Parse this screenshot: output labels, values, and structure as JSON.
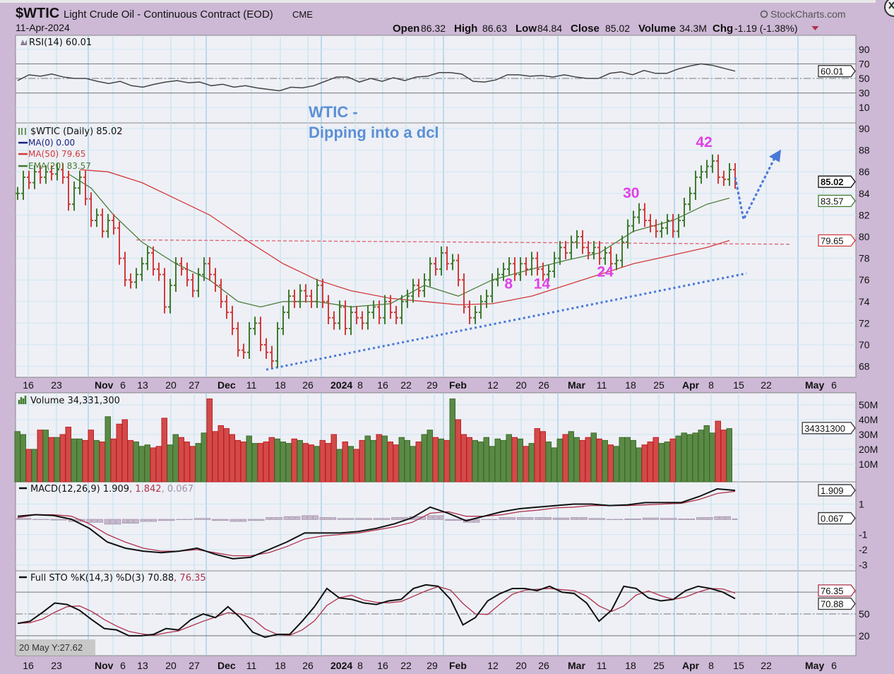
{
  "header": {
    "symbol": "$WTIC",
    "description": "Light Crude Oil - Continuous Contract (EOD)",
    "exchange": "CME",
    "date": "11-Apr-2024",
    "brand": "StockCharts.com",
    "stats": [
      {
        "label": "Open",
        "value": "86.32"
      },
      {
        "label": "High",
        "value": "86.63"
      },
      {
        "label": "Low",
        "value": "84.84"
      },
      {
        "label": "Close",
        "value": "85.02"
      },
      {
        "label": "Volume",
        "value": "34.3M"
      },
      {
        "label": "Chg",
        "value": "-1.19 (-1.38%)"
      }
    ],
    "colors": {
      "background": "#cdb8d5",
      "panel": "#eef0f6",
      "up": "#3f7a2e",
      "down": "#d23a3a",
      "annotation": "#5b8fd6",
      "cycle": "#e040e8"
    }
  },
  "chart_data": {
    "type": "line",
    "title": "$WTIC Light Crude Oil - Continuous Contract (EOD) CME",
    "date_axis": [
      {
        "text": "16",
        "bold": false
      },
      {
        "text": "23",
        "bold": false
      },
      {
        "text": "Nov",
        "bold": true
      },
      {
        "text": "6",
        "bold": false
      },
      {
        "text": "13",
        "bold": false
      },
      {
        "text": "20",
        "bold": false
      },
      {
        "text": "27",
        "bold": false
      },
      {
        "text": "Dec",
        "bold": true
      },
      {
        "text": "11",
        "bold": false
      },
      {
        "text": "18",
        "bold": false
      },
      {
        "text": "26",
        "bold": false
      },
      {
        "text": "2024",
        "bold": true
      },
      {
        "text": "8",
        "bold": false
      },
      {
        "text": "16",
        "bold": false
      },
      {
        "text": "22",
        "bold": false
      },
      {
        "text": "29",
        "bold": false
      },
      {
        "text": "Feb",
        "bold": true
      },
      {
        "text": "12",
        "bold": false
      },
      {
        "text": "20",
        "bold": false
      },
      {
        "text": "26",
        "bold": false
      },
      {
        "text": "Mar",
        "bold": true
      },
      {
        "text": "11",
        "bold": false
      },
      {
        "text": "18",
        "bold": false
      },
      {
        "text": "25",
        "bold": false
      },
      {
        "text": "Apr",
        "bold": true
      },
      {
        "text": "8",
        "bold": false
      },
      {
        "text": "15",
        "bold": false
      },
      {
        "text": "22",
        "bold": false
      },
      {
        "text": "May",
        "bold": true
      },
      {
        "text": "6",
        "bold": false
      }
    ],
    "rsi": {
      "legend": "RSI(14) 60.01",
      "tag": "60.01",
      "ticks": [
        90,
        70,
        50,
        30,
        10
      ],
      "ylim": [
        0,
        100
      ],
      "values": [
        47,
        55,
        53,
        56,
        52,
        50,
        50,
        46,
        43,
        46,
        40,
        38,
        42,
        45,
        47,
        44,
        45,
        40,
        42,
        38,
        40,
        37,
        35,
        33,
        38,
        37,
        40,
        46,
        52,
        52,
        45,
        50,
        46,
        51,
        47,
        52,
        53,
        58,
        58,
        56,
        46,
        45,
        48,
        55,
        55,
        53,
        54,
        52,
        55,
        52,
        50,
        50,
        57,
        59,
        55,
        61,
        57,
        57,
        63,
        67,
        70,
        68,
        64,
        60
      ]
    },
    "price": {
      "legend": "$WTIC (Daily) 85.02",
      "ma0_legend": "MA(0) 0.00",
      "ma50_legend": "MA(50) 79.65",
      "ema20_legend": "EMA(20) 83.57",
      "tags": {
        "close": "85.02",
        "ema20": "83.57",
        "ma50": "79.65"
      },
      "ticks": [
        90,
        88,
        86,
        84,
        82,
        80,
        78,
        76,
        74,
        72,
        70,
        68
      ],
      "ylim": [
        67,
        90.5
      ],
      "close": [
        84,
        85.5,
        85,
        86,
        85.5,
        86,
        85.8,
        86.2,
        85.5,
        83,
        84.5,
        85.5,
        83.5,
        81.5,
        82,
        80.5,
        81.5,
        80.8,
        78,
        76,
        75.8,
        76.5,
        77.5,
        78.5,
        77,
        76.5,
        73.5,
        75.5,
        77.5,
        77,
        76,
        75,
        76.5,
        77.5,
        76.5,
        75.5,
        74,
        73,
        71.5,
        69.5,
        69.3,
        71.5,
        72,
        70,
        69.3,
        68.5,
        71.5,
        73,
        74.5,
        74,
        75,
        74.5,
        74,
        75.5,
        74,
        72.5,
        72,
        73.5,
        71.5,
        73,
        72.5,
        72,
        73,
        73.5,
        72.5,
        74,
        73,
        72.5,
        74,
        74.5,
        75.5,
        75,
        76,
        77.5,
        77,
        78.5,
        77.5,
        77.8,
        76,
        73.5,
        72.5,
        73,
        74,
        74.5,
        76,
        76.5,
        77,
        77.5,
        76.5,
        77.5,
        77,
        78,
        77,
        76.5,
        76.8,
        78,
        79,
        78.5,
        79.5,
        80,
        79,
        78.5,
        79,
        78,
        78.5,
        77.5,
        77.8,
        79.5,
        81,
        81.8,
        82.5,
        81.5,
        81,
        80.5,
        80.8,
        81.5,
        80.5,
        81.5,
        83,
        84,
        85.5,
        86,
        86.5,
        87,
        85.5,
        85.3,
        86.2,
        85.02
      ],
      "ma50_points": [
        [
          11,
          86.2
        ],
        [
          16,
          86
        ],
        [
          22,
          85
        ],
        [
          28,
          83.5
        ],
        [
          34,
          82
        ],
        [
          41,
          79.5
        ],
        [
          47,
          77.5
        ],
        [
          53,
          76
        ],
        [
          59,
          75
        ],
        [
          66,
          74.3
        ],
        [
          72,
          74
        ],
        [
          78,
          73.7
        ],
        [
          84,
          73.8
        ],
        [
          91,
          74.5
        ],
        [
          97,
          75.5
        ],
        [
          103,
          76.5
        ],
        [
          109,
          77.5
        ],
        [
          116,
          78.3
        ],
        [
          122,
          79
        ],
        [
          126,
          79.65
        ]
      ],
      "ema20_points": [
        [
          9,
          85.8
        ],
        [
          13,
          84.5
        ],
        [
          17,
          82
        ],
        [
          22,
          79.5
        ],
        [
          28,
          77.5
        ],
        [
          34,
          76
        ],
        [
          39,
          74
        ],
        [
          43,
          73.5
        ],
        [
          47,
          74
        ],
        [
          53,
          74
        ],
        [
          59,
          73.5
        ],
        [
          66,
          73.8
        ],
        [
          72,
          75.5
        ],
        [
          78,
          74.5
        ],
        [
          84,
          76
        ],
        [
          91,
          77
        ],
        [
          97,
          77.8
        ],
        [
          103,
          78.5
        ],
        [
          109,
          80.5
        ],
        [
          116,
          81.5
        ],
        [
          122,
          83
        ],
        [
          126,
          83.57
        ]
      ],
      "resistance_line": [
        [
          21,
          79.7
        ],
        [
          137,
          79.3
        ]
      ],
      "trend_line": [
        [
          44,
          67.7
        ],
        [
          129,
          76.6
        ]
      ],
      "projection": [
        [
          127,
          85.5
        ],
        [
          128.5,
          81.6
        ],
        [
          134.5,
          87.8
        ]
      ],
      "annotation_title": "WTIC -",
      "annotation_subtitle": "Dipping into a dcl",
      "cycle_labels": [
        {
          "text": "42",
          "bar": 121.5,
          "price": 88.3
        },
        {
          "text": "30",
          "bar": 108.6,
          "price": 83.6
        },
        {
          "text": "8",
          "bar": 86.9,
          "price": 75.2
        },
        {
          "text": "14",
          "bar": 92.8,
          "price": 75.2
        },
        {
          "text": "24",
          "bar": 104,
          "price": 76.3
        }
      ]
    },
    "volume": {
      "legend": "Volume 34,331,300",
      "tag": "34331300",
      "ticks": [
        {
          "v": 50,
          "text": "50M"
        },
        {
          "v": 40,
          "text": "40M"
        },
        {
          "v": 30,
          "text": "30M"
        },
        {
          "v": 20,
          "text": "20M"
        },
        {
          "v": 10,
          "text": "10M"
        }
      ],
      "values_millions": [
        32,
        30,
        20,
        20,
        33,
        33,
        28,
        28,
        30,
        35,
        27,
        27,
        26,
        33,
        26,
        25,
        42,
        27,
        37,
        40,
        26,
        25,
        22,
        23,
        21,
        22,
        41,
        23,
        30,
        28,
        25,
        22,
        24,
        31,
        54,
        32,
        36,
        34,
        30,
        26,
        25,
        29,
        24,
        24,
        25,
        28,
        27,
        25,
        24,
        27,
        26,
        24,
        23,
        22,
        26,
        24,
        30,
        20,
        25,
        22,
        20,
        26,
        29,
        26,
        30,
        29,
        25,
        23,
        28,
        26,
        22,
        25,
        30,
        33,
        28,
        27,
        26,
        54,
        40,
        30,
        28,
        26,
        25,
        28,
        22,
        27,
        26,
        30,
        28,
        27,
        22,
        24,
        34,
        32,
        25,
        21,
        27,
        30,
        32,
        28,
        26,
        28,
        31,
        27,
        26,
        23,
        22,
        28,
        28,
        26,
        21,
        23,
        25,
        28,
        24,
        25,
        27,
        29,
        31,
        30,
        31,
        33,
        36,
        31,
        39,
        33,
        34
      ]
    },
    "macd": {
      "legend_main": "MACD(12,26,9) 1.909",
      "legend_signal": ", 1.842",
      "legend_hist": ", 0.067",
      "tags": {
        "macd": "1.909",
        "hist": "0.067"
      },
      "ticks": [
        {
          "v": 1,
          "text": "1"
        },
        {
          "v": -1,
          "text": "-1"
        },
        {
          "v": -2,
          "text": "-2"
        },
        {
          "v": -3,
          "text": "-3"
        }
      ],
      "macd": [
        0.2,
        0.3,
        0.25,
        0,
        -0.6,
        -1.5,
        -1.9,
        -2.1,
        -2.2,
        -2.1,
        -1.9,
        -2.3,
        -2.6,
        -2.5,
        -2.0,
        -1.5,
        -0.9,
        -0.9,
        -0.9,
        -0.8,
        -0.6,
        -0.3,
        0.1,
        0.8,
        0.4,
        -0.1,
        0.2,
        0.5,
        0.7,
        0.8,
        0.9,
        1.0,
        1.0,
        0.9,
        0.95,
        1.1,
        1.1,
        1.1,
        1.5,
        2.0,
        1.9
      ],
      "signal": [
        0.1,
        0.3,
        0.3,
        0.2,
        -0.3,
        -1.0,
        -1.5,
        -1.9,
        -2.1,
        -2.1,
        -2.0,
        -2.2,
        -2.4,
        -2.4,
        -2.2,
        -1.8,
        -1.3,
        -1.1,
        -1.0,
        -0.9,
        -0.7,
        -0.5,
        -0.2,
        0.4,
        0.5,
        0.2,
        0.2,
        0.3,
        0.5,
        0.6,
        0.75,
        0.8,
        0.9,
        0.9,
        0.9,
        0.95,
        1.0,
        1.05,
        1.3,
        1.7,
        1.84
      ]
    },
    "sto": {
      "legend_main": "Full STO %K(14,3) %D(3) 70.88",
      "legend_d": ", 76.35",
      "tags": {
        "d": "76.35",
        "k": "70.88"
      },
      "ticks": [
        {
          "v": 50,
          "text": "50"
        },
        {
          "v": 20,
          "text": "20"
        }
      ],
      "k": [
        37,
        40,
        52,
        65,
        63,
        55,
        42,
        30,
        28,
        20,
        20,
        22,
        30,
        28,
        42,
        50,
        45,
        60,
        45,
        25,
        18,
        22,
        22,
        40,
        60,
        85,
        72,
        70,
        65,
        63,
        68,
        70,
        85,
        90,
        88,
        70,
        35,
        45,
        68,
        78,
        85,
        85,
        82,
        88,
        80,
        78,
        65,
        40,
        55,
        88,
        85,
        72,
        68,
        70,
        82,
        88,
        85,
        80,
        71
      ]
    },
    "tooltip": "20 May Y:27.62"
  }
}
